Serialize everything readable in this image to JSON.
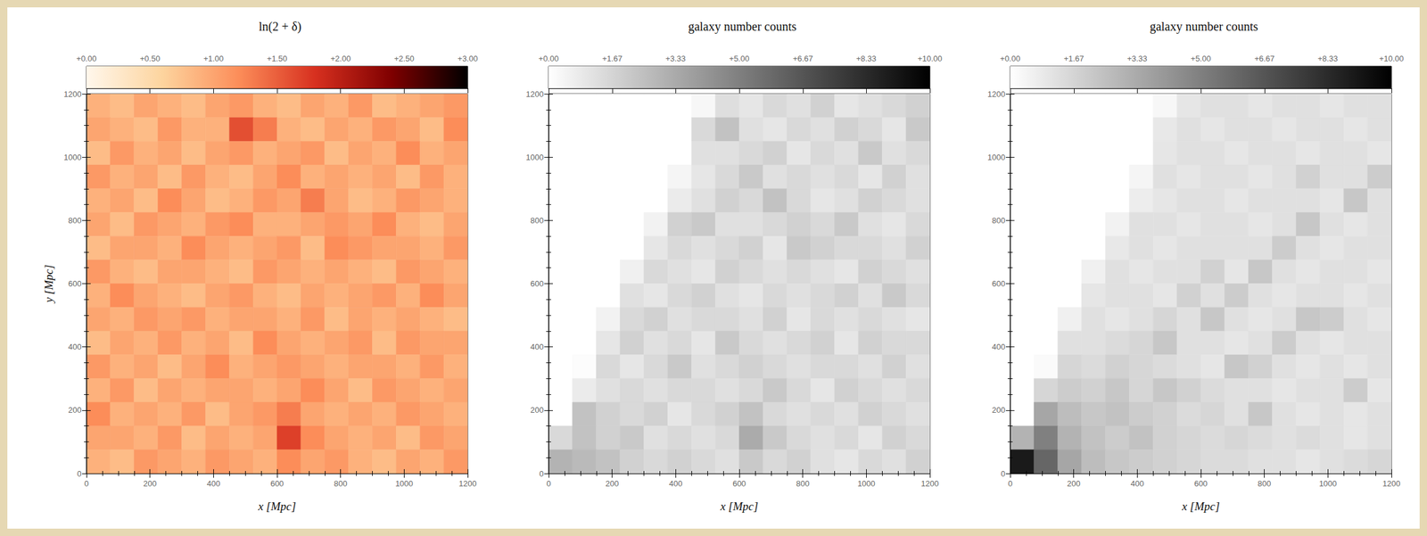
{
  "chart_data": [
    {
      "type": "heatmap",
      "title": "ln(2 + δ)",
      "xlabel": "x [Mpc]",
      "ylabel": "y [Mpc]",
      "xlim": [
        0,
        1200
      ],
      "ylim": [
        0,
        1200
      ],
      "xticks": [
        0,
        200,
        400,
        600,
        800,
        1000,
        1200
      ],
      "yticks": [
        0,
        200,
        400,
        600,
        800,
        1000,
        1200
      ],
      "x_edges": [
        0,
        75,
        150,
        225,
        300,
        375,
        450,
        525,
        600,
        675,
        750,
        825,
        900,
        975,
        1050,
        1125,
        1200
      ],
      "y_edges": [
        1200,
        1125,
        1050,
        975,
        900,
        825,
        750,
        675,
        600,
        525,
        450,
        375,
        300,
        225,
        150,
        75,
        0
      ],
      "cells": [
        [
          0.9,
          0.8,
          1.0,
          0.9,
          0.8,
          1.0,
          1.1,
          0.9,
          0.8,
          1.0,
          0.9,
          1.1,
          0.8,
          0.9,
          1.0,
          1.1
        ],
        [
          1.0,
          0.9,
          0.8,
          1.1,
          0.9,
          0.9,
          1.6,
          1.3,
          0.9,
          0.8,
          1.0,
          0.9,
          1.1,
          1.0,
          0.8,
          1.2
        ],
        [
          0.8,
          1.1,
          0.9,
          1.0,
          0.8,
          1.0,
          1.1,
          0.9,
          1.0,
          1.1,
          0.8,
          1.0,
          0.9,
          1.2,
          0.9,
          1.0
        ],
        [
          1.1,
          0.9,
          1.0,
          0.8,
          1.1,
          0.9,
          0.8,
          1.0,
          1.2,
          0.9,
          1.0,
          0.9,
          1.0,
          0.8,
          1.1,
          0.9
        ],
        [
          0.9,
          1.0,
          0.8,
          1.2,
          1.0,
          0.8,
          0.9,
          1.1,
          1.0,
          1.3,
          1.0,
          0.8,
          0.9,
          1.1,
          1.0,
          0.9
        ],
        [
          1.0,
          0.8,
          1.1,
          1.0,
          0.9,
          1.1,
          1.2,
          0.9,
          0.9,
          1.0,
          1.1,
          1.0,
          1.2,
          0.9,
          0.8,
          1.0
        ],
        [
          0.8,
          1.0,
          1.0,
          0.9,
          1.2,
          1.0,
          0.9,
          1.0,
          1.1,
          0.8,
          1.2,
          1.1,
          1.0,
          1.0,
          0.9,
          1.1
        ],
        [
          1.1,
          0.9,
          0.8,
          1.0,
          1.0,
          0.9,
          0.8,
          1.1,
          1.0,
          0.9,
          1.0,
          0.9,
          0.8,
          1.1,
          1.0,
          0.9
        ],
        [
          0.9,
          1.2,
          1.0,
          0.9,
          0.8,
          1.0,
          1.1,
          0.9,
          0.8,
          1.0,
          0.9,
          1.0,
          1.1,
          0.9,
          1.2,
          1.0
        ],
        [
          1.0,
          0.9,
          1.1,
          1.0,
          1.1,
          0.9,
          1.0,
          1.0,
          0.9,
          1.1,
          0.8,
          1.0,
          0.9,
          1.0,
          0.9,
          0.8
        ],
        [
          0.8,
          1.0,
          0.9,
          1.1,
          0.9,
          1.0,
          0.8,
          1.2,
          1.0,
          0.9,
          1.0,
          1.1,
          0.8,
          1.1,
          1.0,
          1.0
        ],
        [
          1.1,
          0.9,
          1.0,
          0.8,
          1.0,
          1.2,
          0.9,
          1.0,
          1.1,
          1.0,
          0.9,
          1.0,
          1.0,
          0.9,
          1.1,
          0.9
        ],
        [
          0.9,
          1.1,
          0.8,
          1.0,
          0.9,
          1.0,
          1.0,
          0.9,
          1.0,
          1.2,
          1.0,
          0.8,
          1.1,
          1.0,
          0.9,
          1.0
        ],
        [
          1.2,
          0.9,
          1.0,
          0.9,
          1.1,
          0.8,
          1.0,
          1.1,
          1.3,
          1.0,
          0.9,
          1.0,
          0.9,
          1.1,
          1.0,
          0.9
        ],
        [
          1.0,
          1.0,
          0.9,
          1.1,
          0.8,
          1.0,
          0.9,
          1.0,
          1.7,
          1.2,
          1.0,
          0.9,
          1.0,
          0.8,
          1.1,
          1.0
        ],
        [
          0.9,
          0.8,
          1.1,
          1.0,
          0.9,
          1.1,
          1.0,
          0.9,
          1.2,
          1.0,
          1.1,
          0.9,
          0.8,
          1.0,
          0.9,
          1.1
        ]
      ],
      "colorbar": {
        "range": [
          0,
          3
        ],
        "ticks": [
          {
            "value": 0,
            "label": "+0.00"
          },
          {
            "value": 0.5,
            "label": "+0.50"
          },
          {
            "value": 1,
            "label": "+1.00"
          },
          {
            "value": 1.5,
            "label": "+1.50"
          },
          {
            "value": 2,
            "label": "+2.00"
          },
          {
            "value": 2.5,
            "label": "+2.50"
          },
          {
            "value": 3,
            "label": "+3.00"
          }
        ],
        "colors": [
          "#fff7ec",
          "#fdd49e",
          "#fc8d59",
          "#d7301f",
          "#7f0000",
          "#000000"
        ]
      }
    },
    {
      "type": "heatmap",
      "title": "galaxy number counts",
      "xlabel": "x [Mpc]",
      "xlim": [
        0,
        1200
      ],
      "ylim": [
        0,
        1200
      ],
      "xticks": [
        0,
        200,
        400,
        600,
        800,
        1000,
        1200
      ],
      "yticks": [
        0,
        200,
        400,
        600,
        800,
        1000,
        1200
      ],
      "x_edges": [
        0,
        75,
        150,
        225,
        300,
        375,
        450,
        525,
        600,
        675,
        750,
        825,
        900,
        975,
        1050,
        1125,
        1200
      ],
      "y_edges": [
        1200,
        1125,
        1050,
        975,
        900,
        825,
        750,
        675,
        600,
        525,
        450,
        375,
        300,
        225,
        150,
        75,
        0
      ],
      "cells": [
        [
          0,
          0,
          0,
          0,
          0,
          0,
          0.3,
          1.3,
          1.0,
          1.5,
          1.2,
          1.8,
          1.0,
          1.2,
          1.5,
          1.8
        ],
        [
          0,
          0,
          0,
          0,
          0,
          0,
          1.5,
          2.4,
          1.2,
          1.0,
          1.5,
          1.2,
          1.8,
          1.5,
          1.0,
          2.1
        ],
        [
          0,
          0,
          0,
          0,
          0,
          0,
          1.2,
          1.2,
          1.5,
          1.8,
          1.0,
          1.5,
          1.2,
          2.1,
          1.2,
          1.5
        ],
        [
          0,
          0,
          0,
          0,
          0,
          0.4,
          1.0,
          1.5,
          2.1,
          1.2,
          1.5,
          1.2,
          1.5,
          1.0,
          1.8,
          1.2
        ],
        [
          0,
          0,
          0,
          0,
          0,
          0.8,
          1.2,
          1.8,
          1.5,
          2.4,
          1.5,
          1.0,
          1.2,
          1.8,
          1.5,
          1.2
        ],
        [
          0,
          0,
          0,
          0,
          0.5,
          1.8,
          2.1,
          1.2,
          1.2,
          1.5,
          1.8,
          1.5,
          2.1,
          1.2,
          1.0,
          1.5
        ],
        [
          0,
          0,
          0,
          0,
          1.0,
          1.5,
          1.2,
          1.5,
          1.8,
          1.0,
          2.1,
          1.8,
          1.5,
          1.5,
          1.2,
          1.8
        ],
        [
          0,
          0,
          0,
          0.6,
          1.5,
          1.2,
          1.0,
          1.8,
          1.5,
          1.2,
          1.5,
          1.2,
          1.0,
          1.8,
          1.5,
          1.2
        ],
        [
          0,
          0,
          0,
          1.2,
          1.0,
          1.5,
          1.8,
          1.2,
          1.0,
          1.5,
          1.2,
          1.5,
          1.8,
          1.2,
          2.1,
          1.5
        ],
        [
          0,
          0,
          0.5,
          1.5,
          1.8,
          1.2,
          1.5,
          1.5,
          1.2,
          1.8,
          1.0,
          1.5,
          1.2,
          1.5,
          1.2,
          1.0
        ],
        [
          0,
          0,
          1.0,
          1.8,
          1.2,
          1.5,
          1.0,
          2.1,
          1.5,
          1.2,
          1.5,
          1.8,
          1.0,
          1.8,
          1.5,
          1.5
        ],
        [
          0,
          0.1,
          1.5,
          1.0,
          1.5,
          2.1,
          1.2,
          1.5,
          1.8,
          1.5,
          1.2,
          1.5,
          1.5,
          1.2,
          1.8,
          1.2
        ],
        [
          0,
          0.8,
          1.2,
          1.5,
          1.2,
          1.5,
          1.5,
          1.2,
          1.5,
          2.1,
          1.5,
          1.0,
          1.8,
          1.5,
          1.2,
          1.5
        ],
        [
          0,
          2.4,
          1.8,
          1.5,
          1.8,
          1.0,
          1.5,
          1.8,
          2.4,
          1.5,
          1.2,
          1.5,
          1.2,
          1.8,
          1.5,
          1.2
        ],
        [
          1.5,
          2.4,
          1.8,
          2.1,
          1.2,
          1.5,
          1.2,
          1.5,
          3.3,
          2.1,
          1.5,
          1.2,
          1.5,
          1.0,
          1.8,
          1.5
        ],
        [
          3.0,
          2.7,
          2.4,
          1.8,
          1.5,
          1.8,
          1.5,
          1.2,
          2.1,
          1.5,
          1.8,
          1.2,
          1.0,
          1.5,
          1.2,
          1.8
        ]
      ],
      "colorbar": {
        "range": [
          0,
          10
        ],
        "ticks": [
          {
            "value": 0,
            "label": "+0.00"
          },
          {
            "value": 1.67,
            "label": "+1.67"
          },
          {
            "value": 3.33,
            "label": "+3.33"
          },
          {
            "value": 5,
            "label": "+5.00"
          },
          {
            "value": 6.67,
            "label": "+6.67"
          },
          {
            "value": 8.33,
            "label": "+8.33"
          },
          {
            "value": 10,
            "label": "+10.00"
          }
        ],
        "colors": [
          "#ffffff",
          "#000000"
        ]
      }
    },
    {
      "type": "heatmap",
      "title": "galaxy number counts",
      "xlabel": "x [Mpc]",
      "xlim": [
        0,
        1200
      ],
      "ylim": [
        0,
        1200
      ],
      "xticks": [
        0,
        200,
        400,
        600,
        800,
        1000,
        1200
      ],
      "yticks": [
        0,
        200,
        400,
        600,
        800,
        1000,
        1200
      ],
      "x_edges": [
        0,
        75,
        150,
        225,
        300,
        375,
        450,
        525,
        600,
        675,
        750,
        825,
        900,
        975,
        1050,
        1125,
        1200
      ],
      "y_edges": [
        1200,
        1125,
        1050,
        975,
        900,
        825,
        750,
        675,
        600,
        525,
        450,
        375,
        300,
        225,
        150,
        75,
        0
      ],
      "cells": [
        [
          0,
          0,
          0,
          0,
          0,
          0,
          0.3,
          1.0,
          1.2,
          1.2,
          1.0,
          1.2,
          1.2,
          1.0,
          1.2,
          1.2
        ],
        [
          0,
          0,
          0,
          0,
          0,
          0,
          0.9,
          1.2,
          1.0,
          1.2,
          1.2,
          1.0,
          1.2,
          1.2,
          1.0,
          1.2
        ],
        [
          0,
          0,
          0,
          0,
          0,
          0,
          1.0,
          1.2,
          1.2,
          1.0,
          1.2,
          1.2,
          1.0,
          1.2,
          1.2,
          1.0
        ],
        [
          0,
          0,
          0,
          0,
          0,
          0.4,
          1.2,
          1.0,
          1.2,
          1.2,
          1.0,
          1.2,
          1.8,
          1.2,
          1.2,
          2.0
        ],
        [
          0,
          0,
          0,
          0,
          0,
          0.7,
          1.0,
          1.2,
          1.2,
          1.0,
          1.2,
          1.2,
          1.2,
          1.0,
          2.2,
          1.2
        ],
        [
          0,
          0,
          0,
          0,
          0.5,
          1.2,
          1.2,
          1.0,
          1.2,
          1.2,
          1.0,
          1.2,
          2.2,
          1.2,
          1.0,
          1.2
        ],
        [
          0,
          0,
          0,
          0,
          0.9,
          1.2,
          1.0,
          1.2,
          1.2,
          1.2,
          1.2,
          2.0,
          1.2,
          1.0,
          1.2,
          1.2
        ],
        [
          0,
          0,
          0,
          0.6,
          1.2,
          1.0,
          1.2,
          1.2,
          1.8,
          1.0,
          2.2,
          1.2,
          1.0,
          1.2,
          1.2,
          1.0
        ],
        [
          0,
          0,
          0,
          1.0,
          1.2,
          1.2,
          1.0,
          1.8,
          1.2,
          2.0,
          1.2,
          1.0,
          1.2,
          1.2,
          1.0,
          1.2
        ],
        [
          0,
          0,
          0.6,
          1.2,
          1.0,
          1.2,
          1.6,
          1.2,
          2.2,
          1.2,
          1.0,
          1.2,
          2.2,
          2.0,
          1.2,
          1.0
        ],
        [
          0,
          0,
          1.2,
          1.2,
          1.4,
          1.6,
          2.2,
          1.2,
          1.2,
          1.0,
          1.2,
          2.0,
          1.2,
          1.0,
          1.2,
          1.2
        ],
        [
          0,
          0.2,
          1.6,
          1.4,
          1.8,
          1.6,
          1.4,
          1.2,
          1.0,
          2.2,
          1.8,
          1.2,
          1.0,
          1.2,
          1.0,
          1.2
        ],
        [
          0,
          1.6,
          2.0,
          1.8,
          2.2,
          1.6,
          2.2,
          1.8,
          1.4,
          1.2,
          1.2,
          1.0,
          1.2,
          1.2,
          2.0,
          1.0
        ],
        [
          0,
          3.5,
          2.6,
          2.2,
          2.4,
          2.0,
          1.8,
          1.4,
          1.6,
          1.2,
          2.2,
          1.2,
          1.0,
          1.2,
          1.0,
          1.2
        ],
        [
          3.0,
          5.0,
          3.0,
          2.4,
          2.0,
          2.4,
          1.8,
          1.6,
          1.4,
          1.6,
          1.4,
          1.2,
          1.4,
          1.2,
          1.0,
          1.2
        ],
        [
          9.0,
          6.0,
          3.5,
          2.6,
          2.2,
          2.0,
          1.8,
          1.6,
          1.4,
          1.4,
          1.2,
          1.2,
          1.0,
          1.2,
          1.4,
          1.6
        ]
      ],
      "colorbar": {
        "range": [
          0,
          10
        ],
        "ticks": [
          {
            "value": 0,
            "label": "+0.00"
          },
          {
            "value": 1.67,
            "label": "+1.67"
          },
          {
            "value": 3.33,
            "label": "+3.33"
          },
          {
            "value": 5,
            "label": "+5.00"
          },
          {
            "value": 6.67,
            "label": "+6.67"
          },
          {
            "value": 8.33,
            "label": "+8.33"
          },
          {
            "value": 10,
            "label": "+10.00"
          }
        ],
        "colors": [
          "#ffffff",
          "#000000"
        ]
      }
    }
  ]
}
